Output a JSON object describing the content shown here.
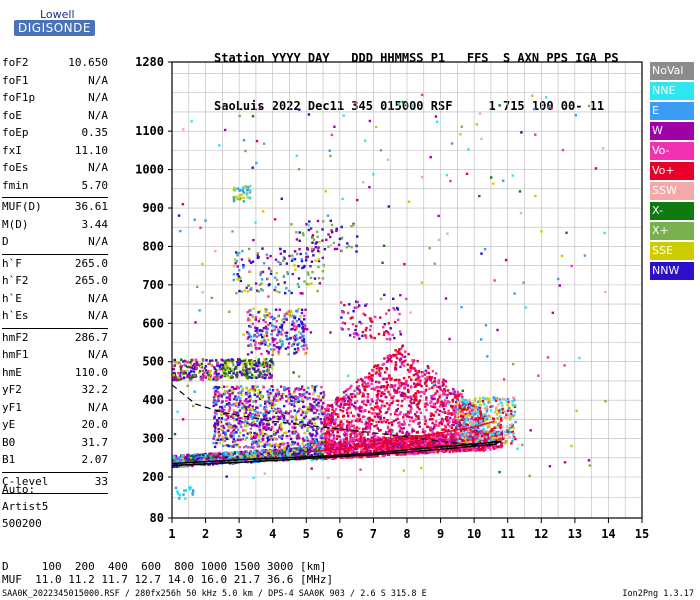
{
  "logo": {
    "line1": "Lowell",
    "line2": "DIGISONDE"
  },
  "header": {
    "line1": "Station YYYY DAY   DDD HHMMSS P1   FFS  S AXN PPS IGA PS",
    "line2": "SaoLuis 2022 Dec11 345 015000 RSF     1 715 100 00- 11"
  },
  "params_groups": [
    [
      {
        "k": "foF2",
        "v": "10.650"
      },
      {
        "k": "foF1",
        "v": "N/A"
      },
      {
        "k": "foF1p",
        "v": "N/A"
      },
      {
        "k": "foE",
        "v": "N/A"
      },
      {
        "k": "foEp",
        "v": "0.35"
      },
      {
        "k": "fxI",
        "v": "11.10"
      },
      {
        "k": "foEs",
        "v": "N/A"
      },
      {
        "k": "fmin",
        "v": "5.70"
      }
    ],
    [
      {
        "k": "MUF(D)",
        "v": "36.61"
      },
      {
        "k": "M(D)",
        "v": "3.44"
      },
      {
        "k": "D",
        "v": "N/A"
      }
    ],
    [
      {
        "k": "h`F",
        "v": "265.0"
      },
      {
        "k": "h`F2",
        "v": "265.0"
      },
      {
        "k": "h`E",
        "v": "N/A"
      },
      {
        "k": "h`Es",
        "v": "N/A"
      }
    ],
    [
      {
        "k": "hmF2",
        "v": "286.7"
      },
      {
        "k": "hmF1",
        "v": "N/A"
      },
      {
        "k": "hmE",
        "v": "110.0"
      },
      {
        "k": "yF2",
        "v": "32.2"
      },
      {
        "k": "yF1",
        "v": "N/A"
      },
      {
        "k": "yE",
        "v": "20.0"
      },
      {
        "k": "B0",
        "v": "31.7"
      },
      {
        "k": "B1",
        "v": "2.07"
      }
    ],
    [
      {
        "k": "C-level",
        "v": "33"
      }
    ]
  ],
  "auto": {
    "line1": "Auto:",
    "line2": "Artist5",
    "line3": "500200"
  },
  "legend": [
    {
      "label": "NoVal",
      "color": "#8c8c8c"
    },
    {
      "label": "NNE",
      "color": "#2ee6f0"
    },
    {
      "label": "E",
      "color": "#3a9cf2"
    },
    {
      "label": "W",
      "color": "#a000a8"
    },
    {
      "label": "Vo-",
      "color": "#f032b0"
    },
    {
      "label": "Vo+",
      "color": "#e8002a"
    },
    {
      "label": "SSW",
      "color": "#f4a8a8"
    },
    {
      "label": "X-",
      "color": "#0e7a10"
    },
    {
      "label": "X+",
      "color": "#78b050"
    },
    {
      "label": "SSE",
      "color": "#cccc00"
    },
    {
      "label": "NNW",
      "color": "#2a10c8"
    }
  ],
  "chart_data": {
    "type": "scatter",
    "x_ticks": [
      "1",
      "2",
      "3",
      "4",
      "5",
      "6",
      "7",
      "8",
      "9",
      "10",
      "11",
      "12",
      "13",
      "14",
      "15"
    ],
    "y_ticks": [
      "80",
      "200",
      "300",
      "400",
      "500",
      "600",
      "700",
      "800",
      "900",
      "1000",
      "1100",
      "1280"
    ],
    "xlim": [
      1,
      15
    ],
    "ylim": [
      80,
      1280
    ],
    "trace_solid": [
      [
        1,
        235
      ],
      [
        3,
        245
      ],
      [
        5,
        252
      ],
      [
        7,
        262
      ],
      [
        8.5,
        275
      ],
      [
        9.5,
        282
      ],
      [
        10.3,
        288
      ],
      [
        10.8,
        293
      ],
      [
        10.6,
        285
      ],
      [
        9,
        272
      ],
      [
        7,
        258
      ],
      [
        5,
        248
      ],
      [
        3,
        238
      ],
      [
        1,
        230
      ]
    ],
    "trace_dashed": [
      [
        1,
        440
      ],
      [
        1.7,
        390
      ],
      [
        2.5,
        368
      ],
      [
        4,
        345
      ],
      [
        6,
        325
      ],
      [
        8,
        305
      ],
      [
        9,
        293
      ],
      [
        10,
        283
      ],
      [
        10.8,
        295
      ]
    ],
    "trace_red": [
      [
        5,
        265
      ],
      [
        6,
        272
      ],
      [
        7,
        285
      ],
      [
        8,
        300
      ],
      [
        9,
        315
      ],
      [
        10,
        330
      ],
      [
        10.6,
        345
      ]
    ]
  },
  "bottom_rows": {
    "row1": "D     100  200  400  600  800 1000 1500 3000 [km]",
    "row2": "MUF  11.0 11.2 11.7 12.7 14.0 16.0 21.7 36.6 [MHz]"
  },
  "footer": "SAA0K_2022345015000.RSF / 280fx256h 50 kHz 5.0 km / DPS-4 SAA0K 903 / 2.6 S 315.8 E",
  "version": "Ion2Png 1.3.17"
}
